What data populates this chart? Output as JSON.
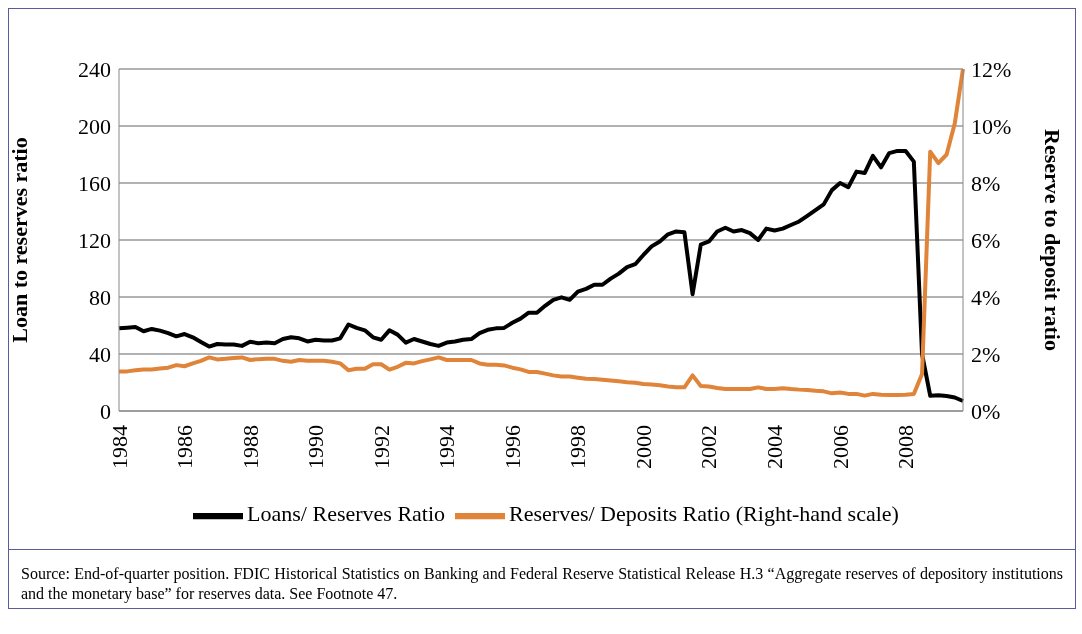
{
  "chart_data": {
    "type": "line",
    "categories": [
      "1984",
      null,
      null,
      null,
      null,
      null,
      null,
      null,
      "1986",
      null,
      null,
      null,
      null,
      null,
      null,
      null,
      "1988",
      null,
      null,
      null,
      null,
      null,
      null,
      null,
      "1990",
      null,
      null,
      null,
      null,
      null,
      null,
      null,
      "1992",
      null,
      null,
      null,
      null,
      null,
      null,
      null,
      "1994",
      null,
      null,
      null,
      null,
      null,
      null,
      null,
      "1996",
      null,
      null,
      null,
      null,
      null,
      null,
      null,
      "1998",
      null,
      null,
      null,
      null,
      null,
      null,
      null,
      "2000",
      null,
      null,
      null,
      null,
      null,
      null,
      null,
      "2002",
      null,
      null,
      null,
      null,
      null,
      null,
      null,
      "2004",
      null,
      null,
      null,
      null,
      null,
      null,
      null,
      "2006",
      null,
      null,
      null,
      null,
      null,
      null,
      null,
      "2008",
      null,
      null,
      null,
      null,
      null,
      null,
      null
    ],
    "series": [
      {
        "name": "Loans/ Reserves Ratio",
        "color": "#000000",
        "values": [
          58,
          58.5,
          59,
          56,
          57.6,
          56.4,
          54.7,
          52.4,
          54,
          51.7,
          48.4,
          45.2,
          47,
          46.7,
          46.7,
          45.7,
          48.6,
          47.6,
          48,
          47.6,
          50.5,
          51.7,
          51,
          48.8,
          50,
          49.5,
          49.5,
          51,
          60.7,
          58.3,
          56.6,
          51.7,
          50,
          56.6,
          53.6,
          48,
          50.5,
          48.8,
          47,
          45.7,
          48,
          48.8,
          50,
          50.5,
          54.7,
          57,
          58,
          58.3,
          61.9,
          64.8,
          69,
          69,
          73.8,
          78,
          79.8,
          78,
          83.8,
          85.7,
          88.6,
          88.6,
          92.9,
          96.4,
          101,
          103,
          109.5,
          115.5,
          119,
          124,
          126,
          125.5,
          82,
          116.7,
          119,
          126,
          128.6,
          126,
          127,
          124.8,
          120,
          128,
          126.7,
          128,
          130.5,
          133,
          137,
          141,
          145,
          155,
          160,
          157,
          168,
          167,
          179,
          171,
          181,
          182.5,
          182.5,
          175,
          40,
          10.7,
          11,
          10.5,
          9.5,
          7
        ]
      },
      {
        "name": "Reserves/ Deposits Ratio (Right-hand scale)",
        "color": "#e0843a",
        "axis": "y2",
        "values": [
          1.39,
          1.39,
          1.43,
          1.46,
          1.46,
          1.49,
          1.52,
          1.61,
          1.57,
          1.67,
          1.76,
          1.88,
          1.81,
          1.83,
          1.86,
          1.88,
          1.79,
          1.82,
          1.83,
          1.83,
          1.76,
          1.73,
          1.79,
          1.76,
          1.76,
          1.76,
          1.73,
          1.67,
          1.43,
          1.48,
          1.48,
          1.64,
          1.64,
          1.45,
          1.55,
          1.69,
          1.67,
          1.75,
          1.81,
          1.88,
          1.79,
          1.79,
          1.79,
          1.79,
          1.67,
          1.62,
          1.62,
          1.6,
          1.52,
          1.46,
          1.37,
          1.37,
          1.31,
          1.25,
          1.21,
          1.21,
          1.17,
          1.13,
          1.12,
          1.1,
          1.07,
          1.04,
          1.01,
          0.99,
          0.95,
          0.93,
          0.9,
          0.86,
          0.83,
          0.83,
          1.25,
          0.88,
          0.86,
          0.81,
          0.77,
          0.77,
          0.77,
          0.77,
          0.83,
          0.77,
          0.77,
          0.8,
          0.77,
          0.75,
          0.74,
          0.71,
          0.69,
          0.62,
          0.65,
          0.6,
          0.6,
          0.54,
          0.6,
          0.57,
          0.56,
          0.56,
          0.57,
          0.6,
          1.3,
          9.1,
          8.7,
          9.0,
          10.1,
          12
        ]
      }
    ],
    "ylabel": "Loan to reserves ratio",
    "y2label": "Reserve to deposit ratio",
    "ylim": [
      0,
      240
    ],
    "yticks": [
      0,
      40,
      80,
      120,
      160,
      200,
      240
    ],
    "y2lim": [
      0,
      12
    ],
    "y2ticks": [
      {
        "value": 0,
        "label": "0%"
      },
      {
        "value": 2,
        "label": "2%"
      },
      {
        "value": 4,
        "label": "4%"
      },
      {
        "value": 6,
        "label": "6%"
      },
      {
        "value": 8,
        "label": "8%"
      },
      {
        "value": 10,
        "label": "10%"
      },
      {
        "value": 12,
        "label": "12%"
      }
    ],
    "grid": "y",
    "legend": "bottom",
    "marker": "none",
    "line_style": "solid",
    "annotations": [
      "Source: End-of-quarter position. FDIC Historical Statistics on Banking and Federal Reserve Statistical Release H.3 “Aggregate reserves of depository institutions and the monetary base” for reserves data. See Footnote 47."
    ]
  }
}
